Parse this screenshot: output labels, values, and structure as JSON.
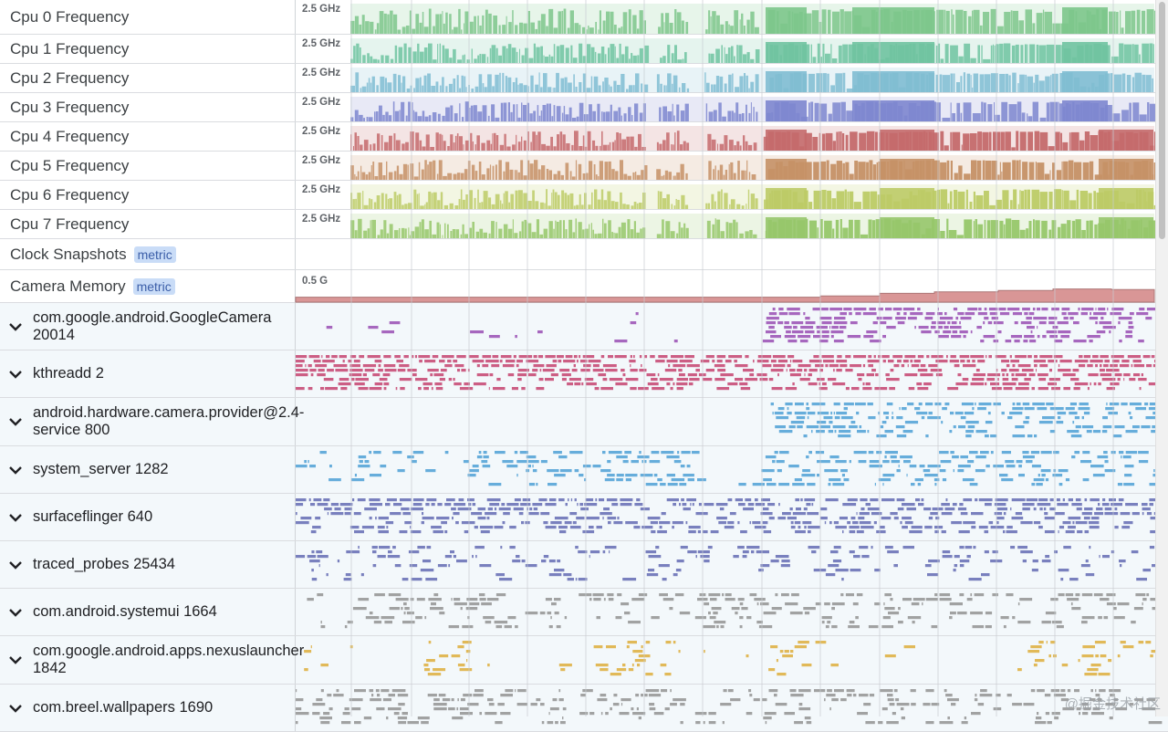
{
  "rows": [
    {
      "kind": "cpu",
      "label": "Cpu 0 Frequency",
      "value": "2.5 GHz",
      "color": "#7cc68b"
    },
    {
      "kind": "cpu",
      "label": "Cpu 1 Frequency",
      "value": "2.5 GHz",
      "color": "#6fc3a0"
    },
    {
      "kind": "cpu",
      "label": "Cpu 2 Frequency",
      "value": "2.5 GHz",
      "color": "#7fbcd2"
    },
    {
      "kind": "cpu",
      "label": "Cpu 3 Frequency",
      "value": "2.5 GHz",
      "color": "#7d86cf"
    },
    {
      "kind": "cpu",
      "label": "Cpu 4 Frequency",
      "value": "2.5 GHz",
      "color": "#c46a6c"
    },
    {
      "kind": "cpu",
      "label": "Cpu 5 Frequency",
      "value": "2.5 GHz",
      "color": "#c59166"
    },
    {
      "kind": "cpu",
      "label": "Cpu 6 Frequency",
      "value": "2.5 GHz",
      "color": "#bccb66"
    },
    {
      "kind": "cpu",
      "label": "Cpu 7 Frequency",
      "value": "2.5 GHz",
      "color": "#97c76a"
    },
    {
      "kind": "metric",
      "label": "Clock Snapshots",
      "badge": "metric"
    },
    {
      "kind": "memory",
      "label": "Camera Memory",
      "badge": "metric",
      "value": "0.5 G",
      "color": "#c96b6b"
    },
    {
      "kind": "proc",
      "label": "com.google.android.GoogleCamera 20014",
      "color": "#a05ab8"
    },
    {
      "kind": "proc",
      "label": "kthreadd 2",
      "color": "#c9507a"
    },
    {
      "kind": "proc",
      "label": "android.hardware.camera.provider@2.4-service 800",
      "color": "#5aa6d8"
    },
    {
      "kind": "proc",
      "label": "system_server 1282",
      "color": "#5aa6d8"
    },
    {
      "kind": "proc",
      "label": "surfaceflinger 640",
      "color": "#6f75b8"
    },
    {
      "kind": "proc",
      "label": "traced_probes 25434",
      "color": "#6f75b8"
    },
    {
      "kind": "proc",
      "label": "com.android.systemui 1664",
      "color": "#9a9a9a"
    },
    {
      "kind": "proc",
      "label": "com.google.android.apps.nexuslauncher 1842",
      "color": "#e0b34a"
    },
    {
      "kind": "proc",
      "label": "com.breel.wallpapers 1690",
      "color": "#9a9a9a"
    }
  ],
  "watermark": "@掘金技术社区"
}
